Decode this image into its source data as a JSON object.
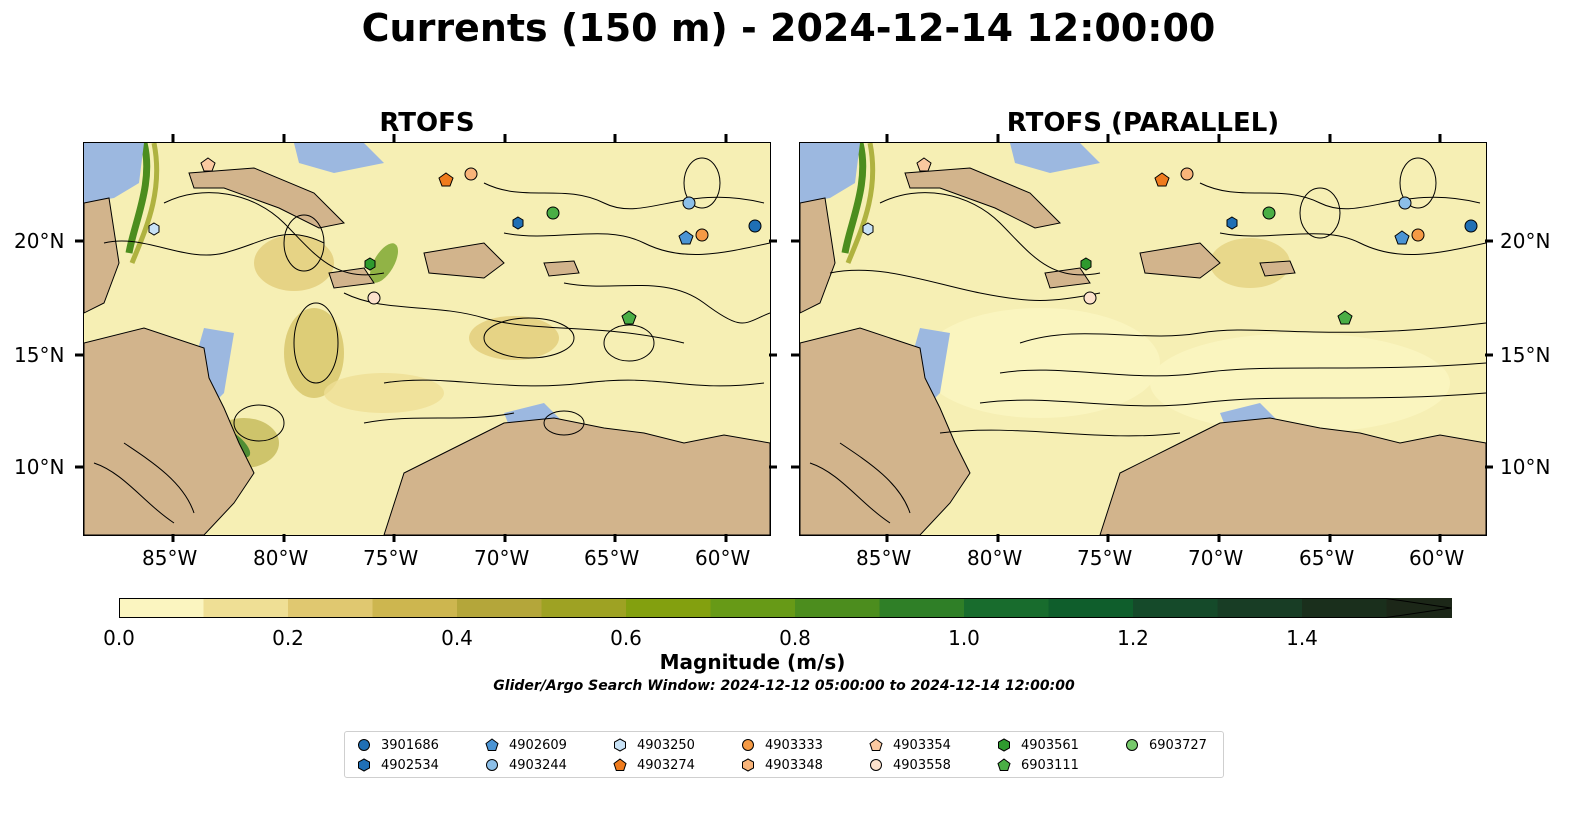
{
  "title": "Currents (150 m) - 2024-12-14 12:00:00",
  "panels": [
    {
      "title": "RTOFS"
    },
    {
      "title": "RTOFS (PARALLEL)"
    }
  ],
  "axes": {
    "lon_ticks": [
      "85°W",
      "80°W",
      "75°W",
      "70°W",
      "65°W",
      "60°W"
    ],
    "lat_ticks": [
      "20°N",
      "15°N",
      "10°N"
    ]
  },
  "colorbar": {
    "label": "Magnitude (m/s)",
    "ticks": [
      "0.0",
      "0.2",
      "0.4",
      "0.6",
      "0.8",
      "1.0",
      "1.2",
      "1.4"
    ],
    "colors": [
      "#fbf5c0",
      "#efdf95",
      "#e0c870",
      "#cdb64f",
      "#b4a63a",
      "#9ea223",
      "#83a00f",
      "#679a17",
      "#4c8d1e",
      "#2f7f27",
      "#186c2d",
      "#0f5e2c",
      "#154a2a",
      "#183d25",
      "#1a2f1c",
      "#1c2718"
    ]
  },
  "search_window": "Glider/Argo Search Window: 2024-12-12 05:00:00 to 2024-12-14 12:00:00",
  "legend": [
    {
      "label": "3901686",
      "marker": "circle",
      "color": "#1f6fb5"
    },
    {
      "label": "4902534",
      "marker": "hexagon",
      "color": "#1f6fb5"
    },
    {
      "label": "4902609",
      "marker": "pentagon",
      "color": "#4b94d4"
    },
    {
      "label": "4903244",
      "marker": "circle",
      "color": "#8cbfe8"
    },
    {
      "label": "4903250",
      "marker": "hexagon",
      "color": "#c8e2f6"
    },
    {
      "label": "4903274",
      "marker": "pentagon",
      "color": "#ef7b1d"
    },
    {
      "label": "4903333",
      "marker": "circle",
      "color": "#f59a45"
    },
    {
      "label": "4903348",
      "marker": "hexagon",
      "color": "#f8b47a"
    },
    {
      "label": "4903354",
      "marker": "pentagon",
      "color": "#fac9a0"
    },
    {
      "label": "4903558",
      "marker": "circle",
      "color": "#fde2cc"
    },
    {
      "label": "4903561",
      "marker": "hexagon",
      "color": "#2e9a2e"
    },
    {
      "label": "6903111",
      "marker": "pentagon",
      "color": "#4aae45"
    },
    {
      "label": "6903727",
      "marker": "circle",
      "color": "#76c96b"
    }
  ]
}
